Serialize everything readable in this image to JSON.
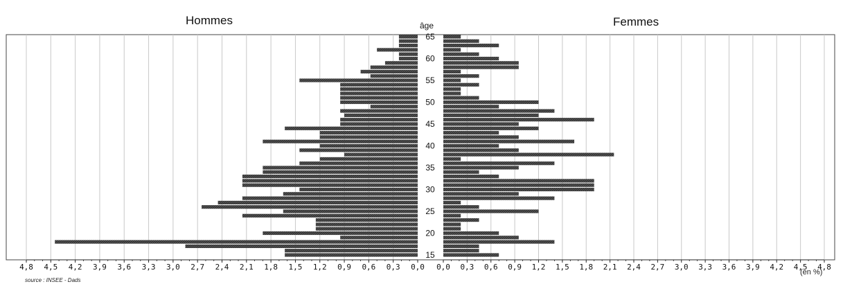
{
  "chart_data": {
    "type": "bar",
    "title_left": "Hommes",
    "title_right": "Femmes",
    "age_axis_label": "âge",
    "unit_label": "(en %)",
    "source": "source : INSEE - Dads",
    "x_ticks": [
      "0,0",
      "0,3",
      "0,6",
      "0,9",
      "1,2",
      "1,5",
      "1,8",
      "2,1",
      "2,4",
      "2,7",
      "3,0",
      "3,3",
      "3,6",
      "3,9",
      "4,2",
      "4,5",
      "4,8"
    ],
    "age_ticks": [
      "15",
      "20",
      "25",
      "30",
      "35",
      "40",
      "45",
      "50",
      "55",
      "60",
      "65"
    ],
    "xlim": [
      0,
      4.8
    ],
    "ages": [
      15,
      16,
      17,
      18,
      19,
      20,
      21,
      22,
      23,
      24,
      25,
      26,
      27,
      28,
      29,
      30,
      31,
      32,
      33,
      34,
      35,
      36,
      37,
      38,
      39,
      40,
      41,
      42,
      43,
      44,
      45,
      46,
      47,
      48,
      49,
      50,
      51,
      52,
      53,
      54,
      55,
      56,
      57,
      58,
      59,
      60,
      61,
      62,
      63,
      64,
      65
    ],
    "series": [
      {
        "name": "Hommes",
        "values": [
          1.63,
          1.63,
          2.85,
          4.45,
          0.95,
          1.9,
          1.25,
          1.25,
          1.25,
          2.15,
          1.65,
          2.65,
          2.45,
          2.15,
          1.65,
          1.45,
          2.15,
          2.15,
          2.15,
          1.9,
          1.9,
          1.45,
          1.2,
          0.9,
          1.45,
          1.2,
          1.9,
          1.2,
          1.2,
          1.63,
          0.95,
          0.95,
          0.9,
          0.95,
          0.58,
          0.95,
          0.95,
          0.95,
          0.95,
          0.95,
          1.45,
          0.58,
          0.7,
          0.58,
          0.4,
          0.23,
          0.23,
          0.5,
          0.23,
          0.23,
          0.23
        ]
      },
      {
        "name": "Femmes",
        "values": [
          0.7,
          0.45,
          0.45,
          1.4,
          0.95,
          0.7,
          0.22,
          0.22,
          0.45,
          0.22,
          1.2,
          0.45,
          0.22,
          1.4,
          0.95,
          1.9,
          1.9,
          1.9,
          0.7,
          0.45,
          0.95,
          1.4,
          0.22,
          2.15,
          0.95,
          0.7,
          1.65,
          0.95,
          0.7,
          1.2,
          0.95,
          1.9,
          1.2,
          1.4,
          0.7,
          1.2,
          0.45,
          0.22,
          0.22,
          0.45,
          0.22,
          0.45,
          0.22,
          0.95,
          0.95,
          0.7,
          0.45,
          0.22,
          0.7,
          0.45,
          0.22
        ]
      }
    ],
    "grid": true,
    "colors": {
      "bar": "#333333",
      "grid": "#c8c8c8",
      "frame": "#444444"
    }
  }
}
